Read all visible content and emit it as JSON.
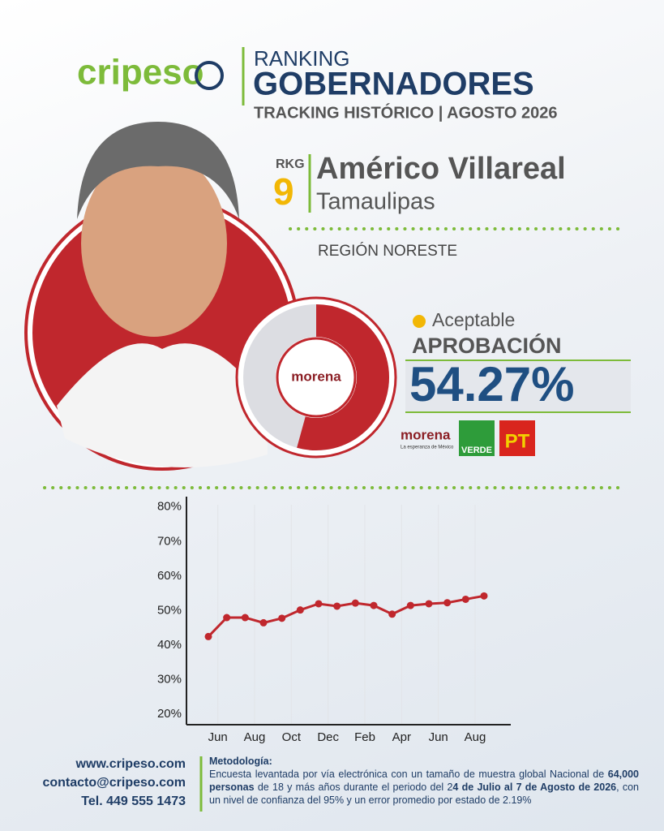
{
  "header": {
    "brand": "cripeso",
    "ranking": "RANKING",
    "title": "GOBERNADORES",
    "subtitle": "TRACKING HISTÓRICO | AGOSTO 2026"
  },
  "profile": {
    "rank_label": "RKG",
    "rank": "9",
    "name": "Américo Villareal",
    "state": "Tamaulipas",
    "region": "REGIÓN NORESTE",
    "status": "Aceptable",
    "approval_label": "APROBACIÓN"
  },
  "gauge": {
    "value": 54.27,
    "value_label": "54.27%"
  },
  "parties": {
    "main": "morena",
    "main_tagline": "La esperanza de México",
    "verde": "VERDE",
    "pt": "PT"
  },
  "chart_data": {
    "type": "line",
    "color": "#c0272d",
    "categories": [
      null,
      "Jun",
      null,
      "Aug",
      null,
      "Oct",
      null,
      "Dec",
      null,
      "Feb",
      null,
      "Apr",
      null,
      "Jun",
      null,
      "Aug"
    ],
    "values": [
      42.5,
      48,
      48,
      46.5,
      47.8,
      50.2,
      52,
      51.3,
      52.2,
      51.5,
      49,
      51.5,
      52,
      52.3,
      53.3,
      54.27
    ],
    "ylim": [
      17,
      83
    ],
    "yticks": [
      {
        "value": 20,
        "label": "20%"
      },
      {
        "value": 30,
        "label": "30%"
      },
      {
        "value": 40,
        "label": "40%"
      },
      {
        "value": 50,
        "label": "50%"
      },
      {
        "value": 60,
        "label": "60%"
      },
      {
        "value": 70,
        "label": "70%"
      },
      {
        "value": 80,
        "label": "80%"
      }
    ],
    "grid": true
  },
  "footer": {
    "web": "www.cripeso.com",
    "email": "contacto@cripeso.com",
    "phone": "Tel. 449 555 1473",
    "method_title": "Metodología:",
    "method_parts": [
      "Encuesta levantada por vía electrónica con un tamaño de muestra global Nacional de ",
      "64,000 personas",
      " de 18 y más años durante el periodo del 2",
      "4 de Julio al 7 de Agosto de 2026",
      ", con un nivel de confianza del 95% y un error promedio por estado de 2.19%"
    ]
  }
}
